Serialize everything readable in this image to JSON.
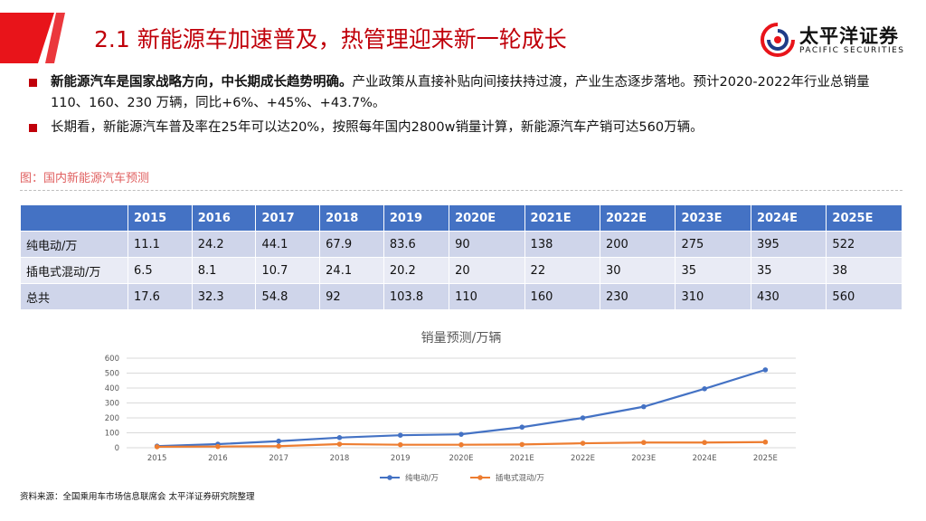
{
  "header": {
    "title": "2.1 新能源车加速普及，热管理迎来新一轮成长",
    "logo_cn": "太平洋证券",
    "logo_en": "PACIFIC SECURITIES",
    "accent": "#e8141a",
    "title_color": "#c0000a"
  },
  "bullets": [
    {
      "bold": "新能源汽车是国家战略方向，中长期成长趋势明确。",
      "text": "产业政策从直接补贴向间接扶持过渡，产业生态逐步落地。预计2020-2022年行业总销量 110、160、230 万辆，同比+6%、+45%、+43.7%。"
    },
    {
      "bold": "",
      "text": "长期看，新能源汽车普及率在25年可以达20%，按照每年国内2800w销量计算，新能源汽车产销可达560万辆。"
    }
  ],
  "figure_label": "图：国内新能源汽车预测",
  "table": {
    "headers": [
      "",
      "2015",
      "2016",
      "2017",
      "2018",
      "2019",
      "2020E",
      "2021E",
      "2022E",
      "2023E",
      "2024E",
      "2025E"
    ],
    "rows": [
      [
        "纯电动/万",
        "11.1",
        "24.2",
        "44.1",
        "67.9",
        "83.6",
        "90",
        "138",
        "200",
        "275",
        "395",
        "522"
      ],
      [
        "插电式混动/万",
        "6.5",
        "8.1",
        "10.7",
        "24.1",
        "20.2",
        "20",
        "22",
        "30",
        "35",
        "35",
        "38"
      ],
      [
        "总共",
        "17.6",
        "32.3",
        "54.8",
        "92",
        "103.8",
        "110",
        "160",
        "230",
        "310",
        "430",
        "560"
      ]
    ],
    "header_bg": "#4472c4"
  },
  "chart_data": {
    "type": "line",
    "title": "销量预测/万辆",
    "categories": [
      "2015",
      "2016",
      "2017",
      "2018",
      "2019",
      "2020E",
      "2021E",
      "2022E",
      "2023E",
      "2024E",
      "2025E"
    ],
    "series": [
      {
        "name": "纯电动/万",
        "color": "#4472c4",
        "values": [
          11.1,
          24.2,
          44.1,
          67.9,
          83.6,
          90,
          138,
          200,
          275,
          395,
          522
        ]
      },
      {
        "name": "插电式混动/万",
        "color": "#ed7d31",
        "values": [
          6.5,
          8.1,
          10.7,
          24.1,
          20.2,
          20,
          22,
          30,
          35,
          35,
          38
        ]
      }
    ],
    "yticks": [
      0,
      100,
      200,
      300,
      400,
      500,
      600
    ],
    "ylim": [
      0,
      600
    ],
    "grid": true,
    "legend": "bottom"
  },
  "source": "资料来源：全国乘用车市场信息联席会  太平洋证券研究院整理"
}
